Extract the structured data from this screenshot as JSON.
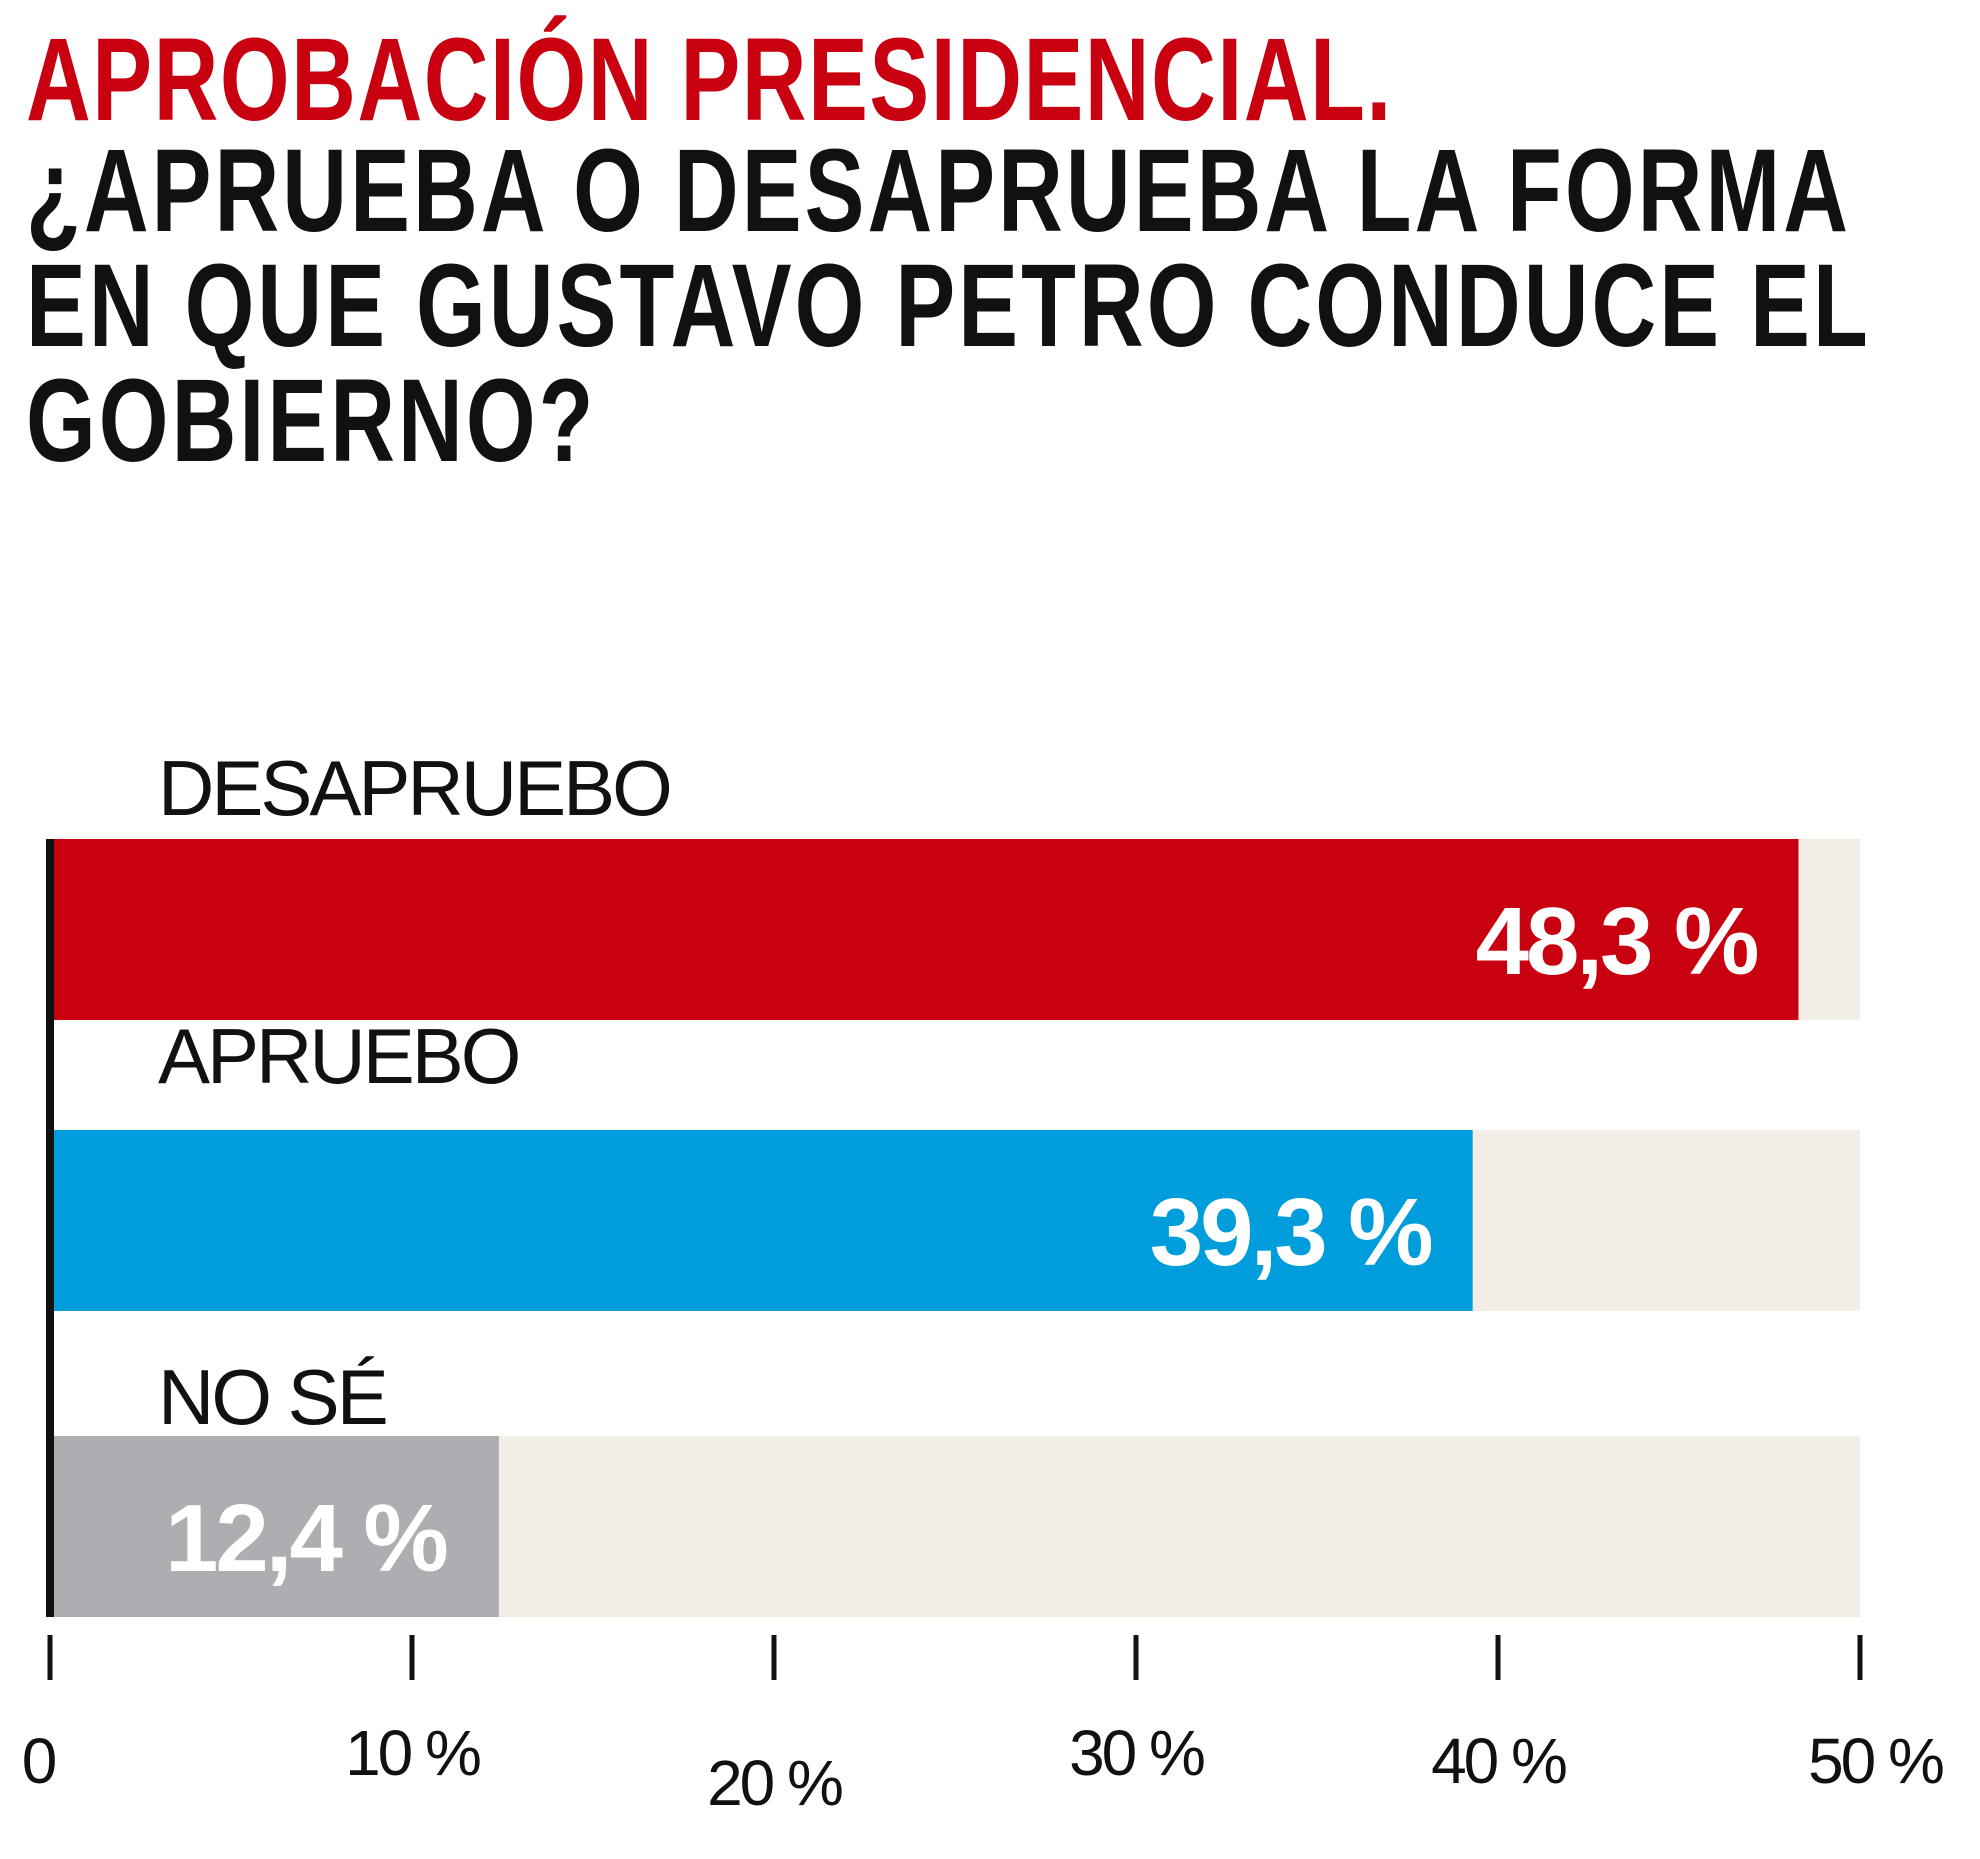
{
  "header": {
    "title": "APROBACIÓN PRESIDENCIAL.",
    "question_lines": [
      "¿APRUEBA O DESAPRUEBA LA FORMA",
      "EN QUE GUSTAVO PETRO CONDUCE EL",
      "GOBIERNO?"
    ]
  },
  "colors": {
    "title_red": "#c8000f",
    "desapruebo": "#c8000f",
    "apruebo": "#009ddc",
    "no_se": "#adadb2",
    "track": "#f3efe6",
    "axis": "#111111"
  },
  "chart_data": {
    "type": "bar",
    "orientation": "horizontal",
    "title": "APROBACIÓN PRESIDENCIAL.",
    "categories": [
      "DESAPRUEBO",
      "APRUEBO",
      "NO SÉ"
    ],
    "values": [
      48.3,
      39.3,
      12.4
    ],
    "value_labels": [
      "48,3 %",
      "39,3 %",
      "12,4 %"
    ],
    "bar_colors": [
      "#c8000f",
      "#009ddc",
      "#adadb2"
    ],
    "xlim": [
      0,
      50
    ],
    "ticks": [
      0,
      10,
      20,
      30,
      40,
      50
    ],
    "tick_labels": [
      "0",
      "10 %",
      "20 %",
      "30 %",
      "40 %",
      "50 %"
    ],
    "xlabel": "",
    "ylabel": "",
    "grid": false
  }
}
